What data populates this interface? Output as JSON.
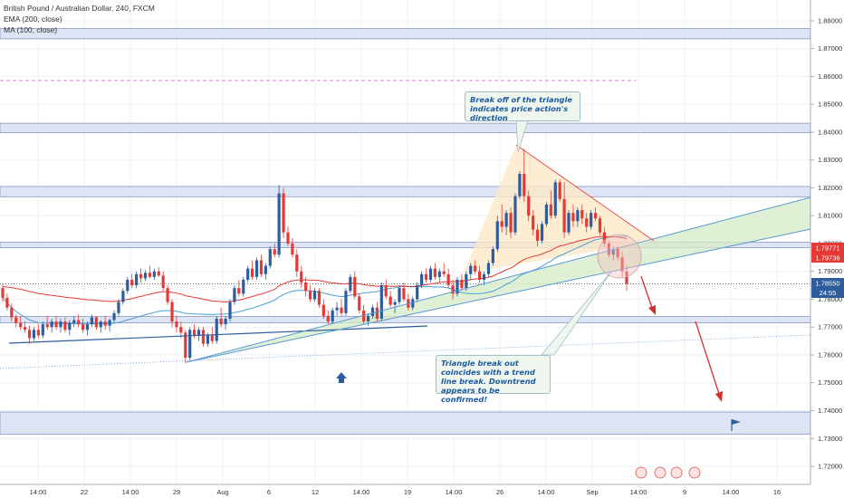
{
  "legend": {
    "title": "British Pound / Australian Dollar, 240, FXCM",
    "ema": "EMA (200, close)",
    "ma": "MA (100, close)"
  },
  "annotations": {
    "top_note": "Break off of  the triangle indicates price action's direction",
    "bottom_note": "Triangle break out coincides with a trend line break. Downtrend appears to be confirmed!"
  },
  "price_tags": {
    "ema_value": "1.79771",
    "ma_value": "1.79736",
    "last_price": "1.78550",
    "countdown": "24:55"
  },
  "colors": {
    "candle_up": "#2e5d9e",
    "candle_down": "#e53935",
    "ema": "#e53935",
    "ma": "#4a9fd8",
    "zone_fill": "#dde4f3",
    "zone_border": "#8a98c2",
    "triangle_fill": "#fbe9c8",
    "channel_fill": "#d4ebc6",
    "channel_border": "#5b9bd5",
    "dashed_level": "#e47be6",
    "arrow_red": "#d32f2f",
    "arrow_up": "#2e5d9e",
    "flag": "#2e5d9e"
  },
  "chart_data": {
    "type": "candlestick",
    "symbol": "British Pound / Australian Dollar, 240, FXCM",
    "ylim": [
      1.7135,
      1.8855
    ],
    "y_ticks": [
      "1.88000",
      "1.87000",
      "1.86000",
      "1.85000",
      "1.84000",
      "1.83000",
      "1.82000",
      "1.81000",
      "1.80000",
      "1.79000",
      "1.78000",
      "1.77000",
      "1.76000",
      "1.75000",
      "1.74000",
      "1.73000",
      "1.72000"
    ],
    "x_ticks": [
      "14:00",
      "22",
      "14:00",
      "29",
      "Aug",
      "6",
      "12",
      "14:00",
      "19",
      "14:00",
      "26",
      "14:00",
      "Sep",
      "14:00",
      "9",
      "14:00",
      "16"
    ],
    "zones": [
      {
        "from": 1.8735,
        "to": 1.8772
      },
      {
        "from": 1.8398,
        "to": 1.8432
      },
      {
        "from": 1.8168,
        "to": 1.8205
      },
      {
        "from": 1.7985,
        "to": 1.8005
      },
      {
        "from": 1.7715,
        "to": 1.7738
      },
      {
        "from": 1.7315,
        "to": 1.7395
      }
    ],
    "dashed_level": 1.8585,
    "overlays": [
      "EMA (200, close)",
      "MA (100, close)",
      "triangle",
      "ascending channel",
      "trend lines"
    ],
    "candles_ohlc": [
      [
        1.784,
        1.7855,
        1.779,
        1.7805
      ],
      [
        1.7805,
        1.782,
        1.776,
        1.777
      ],
      [
        1.777,
        1.7785,
        1.772,
        1.7735
      ],
      [
        1.7735,
        1.7745,
        1.77,
        1.7715
      ],
      [
        1.7715,
        1.774,
        1.769,
        1.77
      ],
      [
        1.77,
        1.772,
        1.768,
        1.769
      ],
      [
        1.769,
        1.7705,
        1.764,
        1.766
      ],
      [
        1.766,
        1.77,
        1.765,
        1.769
      ],
      [
        1.769,
        1.771,
        1.766,
        1.767
      ],
      [
        1.767,
        1.772,
        1.766,
        1.771
      ],
      [
        1.771,
        1.774,
        1.769,
        1.77
      ],
      [
        1.77,
        1.773,
        1.768,
        1.772
      ],
      [
        1.772,
        1.774,
        1.769,
        1.77
      ],
      [
        1.77,
        1.773,
        1.768,
        1.772
      ],
      [
        1.772,
        1.7735,
        1.768,
        1.769
      ],
      [
        1.769,
        1.7725,
        1.767,
        1.7715
      ],
      [
        1.7715,
        1.774,
        1.77,
        1.7725
      ],
      [
        1.7725,
        1.7745,
        1.77,
        1.771
      ],
      [
        1.771,
        1.773,
        1.768,
        1.769
      ],
      [
        1.769,
        1.772,
        1.767,
        1.771
      ],
      [
        1.771,
        1.7745,
        1.77,
        1.7735
      ],
      [
        1.7735,
        1.774,
        1.769,
        1.77
      ],
      [
        1.77,
        1.7725,
        1.768,
        1.772
      ],
      [
        1.772,
        1.774,
        1.769,
        1.7705
      ],
      [
        1.7705,
        1.773,
        1.7685,
        1.7725
      ],
      [
        1.7725,
        1.776,
        1.7715,
        1.775
      ],
      [
        1.775,
        1.78,
        1.774,
        1.779
      ],
      [
        1.779,
        1.784,
        1.778,
        1.783
      ],
      [
        1.783,
        1.788,
        1.782,
        1.787
      ],
      [
        1.787,
        1.789,
        1.784,
        1.785
      ],
      [
        1.785,
        1.79,
        1.784,
        1.789
      ],
      [
        1.789,
        1.791,
        1.786,
        1.7875
      ],
      [
        1.7875,
        1.7905,
        1.7865,
        1.7895
      ],
      [
        1.7895,
        1.792,
        1.7875,
        1.788
      ],
      [
        1.788,
        1.791,
        1.787,
        1.79
      ],
      [
        1.79,
        1.7915,
        1.788,
        1.7885
      ],
      [
        1.7885,
        1.79,
        1.783,
        1.784
      ],
      [
        1.784,
        1.785,
        1.778,
        1.779
      ],
      [
        1.779,
        1.78,
        1.77,
        1.772
      ],
      [
        1.772,
        1.774,
        1.768,
        1.77
      ],
      [
        1.77,
        1.772,
        1.766,
        1.768
      ],
      [
        1.768,
        1.769,
        1.757,
        1.759
      ],
      [
        1.759,
        1.77,
        1.758,
        1.769
      ],
      [
        1.769,
        1.771,
        1.766,
        1.767
      ],
      [
        1.767,
        1.77,
        1.765,
        1.769
      ],
      [
        1.769,
        1.77,
        1.763,
        1.764
      ],
      [
        1.764,
        1.768,
        1.763,
        1.767
      ],
      [
        1.767,
        1.77,
        1.764,
        1.765
      ],
      [
        1.765,
        1.774,
        1.764,
        1.773
      ],
      [
        1.773,
        1.777,
        1.77,
        1.771
      ],
      [
        1.771,
        1.774,
        1.769,
        1.773
      ],
      [
        1.773,
        1.78,
        1.772,
        1.779
      ],
      [
        1.779,
        1.785,
        1.778,
        1.784
      ],
      [
        1.784,
        1.787,
        1.781,
        1.782
      ],
      [
        1.782,
        1.788,
        1.781,
        1.787
      ],
      [
        1.787,
        1.792,
        1.786,
        1.791
      ],
      [
        1.791,
        1.794,
        1.787,
        1.788
      ],
      [
        1.788,
        1.795,
        1.787,
        1.794
      ],
      [
        1.794,
        1.796,
        1.788,
        1.789
      ],
      [
        1.789,
        1.793,
        1.787,
        1.792
      ],
      [
        1.792,
        1.799,
        1.791,
        1.798
      ],
      [
        1.798,
        1.8,
        1.795,
        1.796
      ],
      [
        1.796,
        1.821,
        1.795,
        1.818
      ],
      [
        1.818,
        1.82,
        1.802,
        1.804
      ],
      [
        1.804,
        1.806,
        1.799,
        1.8
      ],
      [
        1.8,
        1.802,
        1.795,
        1.796
      ],
      [
        1.796,
        1.798,
        1.788,
        1.79
      ],
      [
        1.79,
        1.792,
        1.784,
        1.786
      ],
      [
        1.786,
        1.788,
        1.781,
        1.783
      ],
      [
        1.783,
        1.785,
        1.779,
        1.78
      ],
      [
        1.78,
        1.784,
        1.779,
        1.783
      ],
      [
        1.783,
        1.784,
        1.777,
        1.778
      ],
      [
        1.778,
        1.78,
        1.773,
        1.774
      ],
      [
        1.774,
        1.776,
        1.771,
        1.772
      ],
      [
        1.772,
        1.777,
        1.771,
        1.776
      ],
      [
        1.776,
        1.779,
        1.774,
        1.777
      ],
      [
        1.777,
        1.78,
        1.774,
        1.775
      ],
      [
        1.775,
        1.784,
        1.774,
        1.783
      ],
      [
        1.783,
        1.789,
        1.782,
        1.788
      ],
      [
        1.788,
        1.79,
        1.78,
        1.781
      ],
      [
        1.781,
        1.782,
        1.775,
        1.776
      ],
      [
        1.776,
        1.778,
        1.771,
        1.772
      ],
      [
        1.772,
        1.775,
        1.7705,
        1.774
      ],
      [
        1.774,
        1.778,
        1.773,
        1.777
      ],
      [
        1.777,
        1.779,
        1.772,
        1.773
      ],
      [
        1.773,
        1.786,
        1.772,
        1.785
      ],
      [
        1.785,
        1.787,
        1.78,
        1.781
      ],
      [
        1.781,
        1.783,
        1.777,
        1.778
      ],
      [
        1.778,
        1.78,
        1.775,
        1.779
      ],
      [
        1.779,
        1.785,
        1.778,
        1.784
      ],
      [
        1.784,
        1.786,
        1.779,
        1.78
      ],
      [
        1.78,
        1.782,
        1.776,
        1.777
      ],
      [
        1.777,
        1.781,
        1.776,
        1.78
      ],
      [
        1.78,
        1.786,
        1.779,
        1.785
      ],
      [
        1.785,
        1.79,
        1.784,
        1.789
      ],
      [
        1.789,
        1.791,
        1.786,
        1.787
      ],
      [
        1.787,
        1.792,
        1.786,
        1.791
      ],
      [
        1.791,
        1.793,
        1.787,
        1.788
      ],
      [
        1.788,
        1.791,
        1.786,
        1.79
      ],
      [
        1.79,
        1.793,
        1.788,
        1.789
      ],
      [
        1.789,
        1.791,
        1.784,
        1.785
      ],
      [
        1.785,
        1.787,
        1.78,
        1.782
      ],
      [
        1.782,
        1.788,
        1.781,
        1.787
      ],
      [
        1.787,
        1.789,
        1.783,
        1.784
      ],
      [
        1.784,
        1.79,
        1.783,
        1.789
      ],
      [
        1.789,
        1.793,
        1.787,
        1.792
      ],
      [
        1.792,
        1.794,
        1.789,
        1.79
      ],
      [
        1.79,
        1.792,
        1.786,
        1.787
      ],
      [
        1.787,
        1.79,
        1.785,
        1.789
      ],
      [
        1.789,
        1.794,
        1.788,
        1.793
      ],
      [
        1.793,
        1.799,
        1.792,
        1.798
      ],
      [
        1.798,
        1.81,
        1.797,
        1.808
      ],
      [
        1.808,
        1.814,
        1.804,
        1.806
      ],
      [
        1.806,
        1.812,
        1.803,
        1.811
      ],
      [
        1.811,
        1.813,
        1.802,
        1.804
      ],
      [
        1.804,
        1.818,
        1.803,
        1.817
      ],
      [
        1.817,
        1.826,
        1.816,
        1.825
      ],
      [
        1.825,
        1.834,
        1.815,
        1.817
      ],
      [
        1.817,
        1.819,
        1.808,
        1.81
      ],
      [
        1.81,
        1.812,
        1.803,
        1.805
      ],
      [
        1.805,
        1.807,
        1.799,
        1.801
      ],
      [
        1.801,
        1.808,
        1.8,
        1.807
      ],
      [
        1.807,
        1.815,
        1.806,
        1.814
      ],
      [
        1.814,
        1.819,
        1.809,
        1.81
      ],
      [
        1.81,
        1.823,
        1.809,
        1.822
      ],
      [
        1.822,
        1.823,
        1.815,
        1.816
      ],
      [
        1.816,
        1.822,
        1.802,
        1.804
      ],
      [
        1.804,
        1.812,
        1.803,
        1.811
      ],
      [
        1.811,
        1.814,
        1.806,
        1.808
      ],
      [
        1.808,
        1.813,
        1.806,
        1.812
      ],
      [
        1.812,
        1.814,
        1.807,
        1.809
      ],
      [
        1.809,
        1.811,
        1.804,
        1.806
      ],
      [
        1.806,
        1.812,
        1.805,
        1.811
      ],
      [
        1.811,
        1.813,
        1.808,
        1.809
      ],
      [
        1.809,
        1.81,
        1.803,
        1.804
      ],
      [
        1.804,
        1.806,
        1.799,
        1.8
      ],
      [
        1.8,
        1.801,
        1.795,
        1.796
      ],
      [
        1.796,
        1.799,
        1.794,
        1.798
      ],
      [
        1.798,
        1.799,
        1.794,
        1.795
      ],
      [
        1.795,
        1.797,
        1.788,
        1.79
      ],
      [
        1.79,
        1.792,
        1.783,
        1.7855
      ]
    ]
  }
}
